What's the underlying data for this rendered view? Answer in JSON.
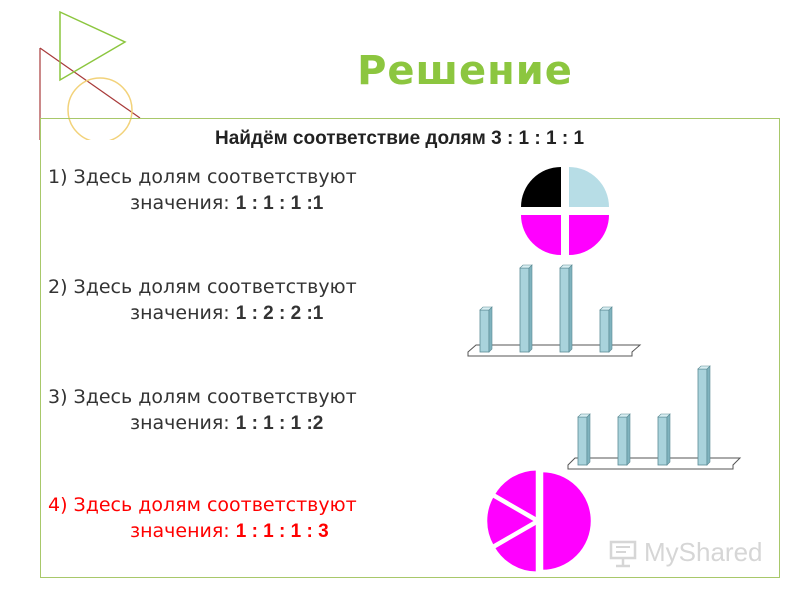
{
  "slide": {
    "title": "Решение",
    "subtitle": "Найдём соответствие долям 3 : 1 : 1 : 1",
    "items": [
      {
        "line1": "1)  Здесь долям соответствуют",
        "prefix": "значения: ",
        "values": "1 : 1 : 1 :1"
      },
      {
        "line1": "2) Здесь долям соответствуют",
        "prefix": "значения: ",
        "values": "1 : 2 : 2 :1"
      },
      {
        "line1": "3) Здесь долям соответствуют",
        "prefix": "значения: ",
        "values": "1 : 1 : 1 :2"
      },
      {
        "line1": "4) Здесь долям соответствуют",
        "prefix": "значения: ",
        "values": "1 : 1 : 1 : 3"
      }
    ],
    "answer_color": "#ff0000",
    "title_color": "#8cc63f"
  },
  "charts": {
    "pie1": {
      "type": "pie",
      "values": [
        1,
        1,
        1,
        1
      ],
      "colors": [
        "#000000",
        "#b7dde6",
        "#ff00ff",
        "#ff00ff"
      ]
    },
    "bar2": {
      "type": "bar",
      "values": [
        1,
        2,
        2,
        1
      ]
    },
    "bar3": {
      "type": "bar",
      "values": [
        1,
        1,
        1,
        2
      ]
    },
    "pie4": {
      "type": "pie",
      "values": [
        1,
        1,
        1,
        3
      ],
      "colors": [
        "#ff00ff"
      ]
    }
  },
  "watermark": {
    "text": "MyShared",
    "icon": "presentation-board-icon"
  }
}
